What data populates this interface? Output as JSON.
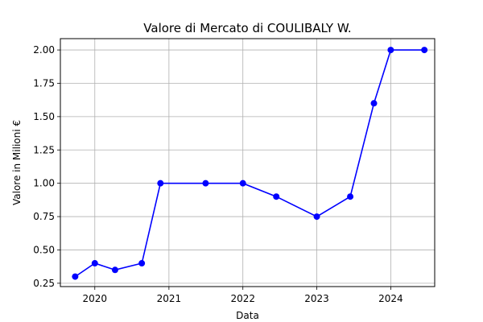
{
  "chart_data": {
    "type": "line",
    "title": "Valore di Mercato di COULIBALY W.",
    "xlabel": "Data",
    "ylabel": "Valore in Milioni €",
    "grid": true,
    "x_ticks": [
      "2020",
      "2021",
      "2022",
      "2023",
      "2024"
    ],
    "y_ticks": [
      "0.25",
      "0.50",
      "0.75",
      "1.00",
      "1.25",
      "1.50",
      "1.75",
      "2.00"
    ],
    "xlim": [
      "2019-07-15",
      "2024-08-05"
    ],
    "ylim": [
      0.225,
      2.085
    ],
    "series": [
      {
        "color": "#0000ff",
        "marker": "circle",
        "points": [
          {
            "x": "2019-09-26",
            "y": 0.3
          },
          {
            "x": "2020-01-01",
            "y": 0.4
          },
          {
            "x": "2020-04-10",
            "y": 0.35
          },
          {
            "x": "2020-08-20",
            "y": 0.4
          },
          {
            "x": "2020-11-20",
            "y": 1.0
          },
          {
            "x": "2021-07-01",
            "y": 1.0
          },
          {
            "x": "2022-01-01",
            "y": 1.0
          },
          {
            "x": "2022-06-15",
            "y": 0.9
          },
          {
            "x": "2023-01-01",
            "y": 0.75
          },
          {
            "x": "2023-06-15",
            "y": 0.9
          },
          {
            "x": "2023-10-10",
            "y": 1.6
          },
          {
            "x": "2024-01-01",
            "y": 2.0
          },
          {
            "x": "2024-06-15",
            "y": 2.0
          }
        ]
      }
    ]
  }
}
